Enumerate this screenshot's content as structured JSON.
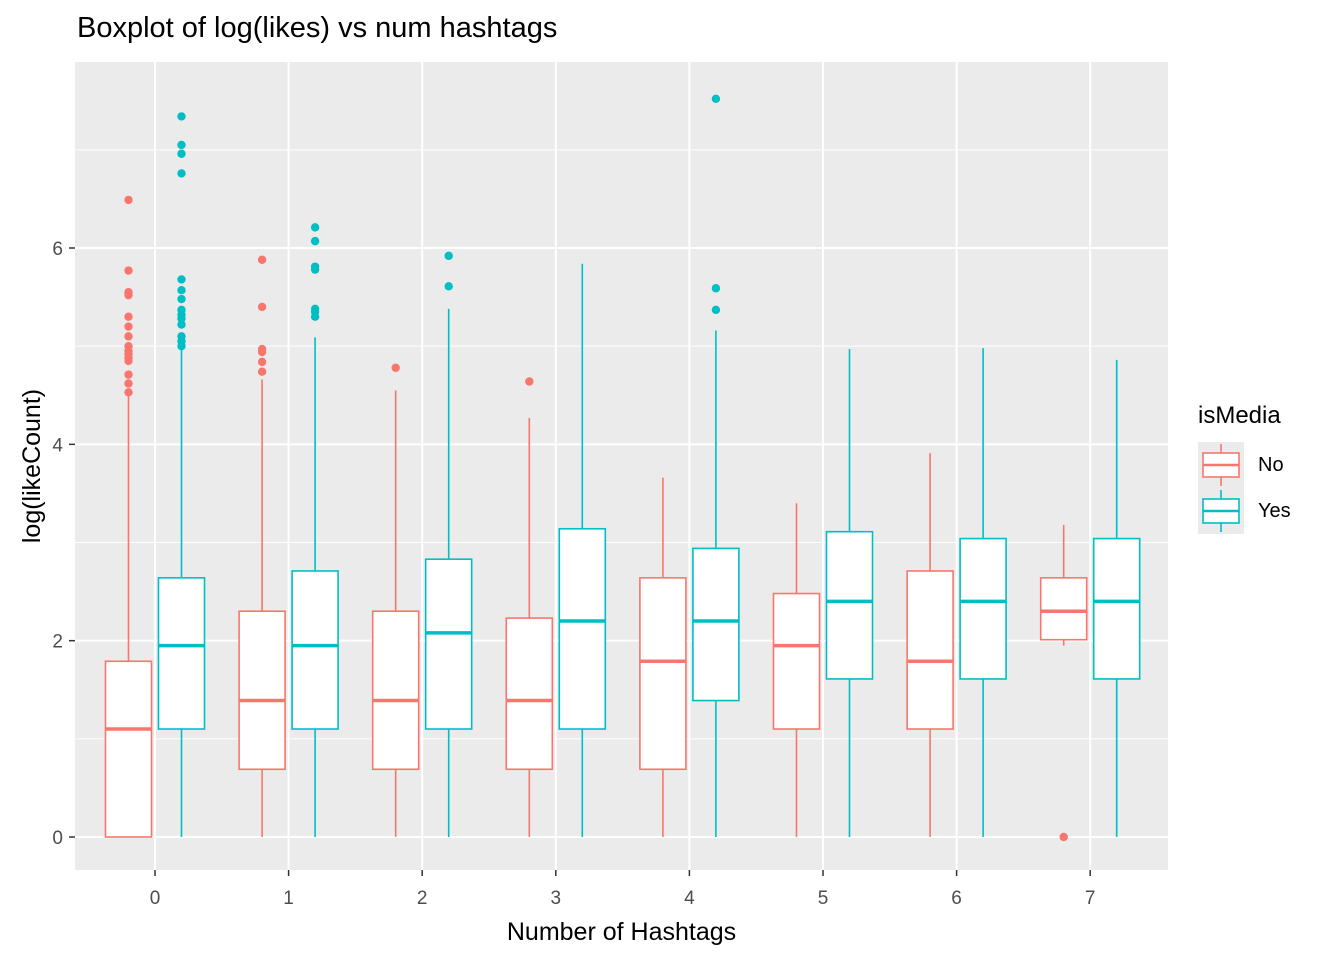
{
  "chart_data": {
    "type": "boxplot",
    "title": "Boxplot of log(likes) vs num hashtags",
    "xlabel": "Number of Hashtags",
    "ylabel": "log(likeCount)",
    "categories": [
      "0",
      "1",
      "2",
      "3",
      "4",
      "5",
      "6",
      "7"
    ],
    "y_ticks": [
      0,
      2,
      4,
      6
    ],
    "ylim": [
      -0.35,
      7.85
    ],
    "grid": true,
    "legend": {
      "title": "isMedia",
      "position": "right"
    },
    "series": [
      {
        "name": "No",
        "color": "#F8766D",
        "boxes": [
          {
            "min": 0,
            "q1": 0,
            "median": 1.1,
            "q3": 1.79,
            "max": 4.5,
            "outliers": [
              4.53,
              4.62,
              4.71,
              4.85,
              4.88,
              4.92,
              4.95,
              5.0,
              5.1,
              5.2,
              5.3,
              5.52,
              5.55,
              5.77,
              6.49
            ]
          },
          {
            "min": 0,
            "q1": 0.69,
            "median": 1.39,
            "q3": 2.3,
            "max": 4.66,
            "outliers": [
              4.74,
              4.84,
              4.94,
              4.97,
              5.4,
              5.88
            ]
          },
          {
            "min": 0,
            "q1": 0.69,
            "median": 1.39,
            "q3": 2.3,
            "max": 4.55,
            "outliers": [
              4.78
            ]
          },
          {
            "min": 0,
            "q1": 0.69,
            "median": 1.39,
            "q3": 2.23,
            "max": 4.27,
            "outliers": [
              4.64
            ]
          },
          {
            "min": 0,
            "q1": 0.69,
            "median": 1.79,
            "q3": 2.64,
            "max": 3.66,
            "outliers": []
          },
          {
            "min": 0,
            "q1": 1.1,
            "median": 1.95,
            "q3": 2.48,
            "max": 3.4,
            "outliers": []
          },
          {
            "min": 0,
            "q1": 1.1,
            "median": 1.79,
            "q3": 2.71,
            "max": 3.91,
            "outliers": []
          },
          {
            "min": 1.95,
            "q1": 2.01,
            "median": 2.3,
            "q3": 2.64,
            "max": 3.18,
            "outliers": [
              0
            ]
          }
        ]
      },
      {
        "name": "Yes",
        "color": "#00BFC4",
        "boxes": [
          {
            "min": 0,
            "q1": 1.1,
            "median": 1.95,
            "q3": 2.64,
            "max": 4.97,
            "outliers": [
              5.0,
              5.05,
              5.1,
              5.22,
              5.28,
              5.32,
              5.37,
              5.48,
              5.57,
              5.68,
              6.76,
              6.96,
              7.05,
              7.34
            ]
          },
          {
            "min": 0,
            "q1": 1.1,
            "median": 1.95,
            "q3": 2.71,
            "max": 5.09,
            "outliers": [
              5.3,
              5.35,
              5.38,
              5.78,
              5.81,
              6.07,
              6.21
            ]
          },
          {
            "min": 0,
            "q1": 1.1,
            "median": 2.08,
            "q3": 2.83,
            "max": 5.38,
            "outliers": [
              5.61,
              5.92
            ]
          },
          {
            "min": 0,
            "q1": 1.1,
            "median": 2.2,
            "q3": 3.14,
            "max": 5.84,
            "outliers": []
          },
          {
            "min": 0,
            "q1": 1.39,
            "median": 2.2,
            "q3": 2.94,
            "max": 5.16,
            "outliers": [
              5.37,
              5.59,
              7.52
            ]
          },
          {
            "min": 0,
            "q1": 1.61,
            "median": 2.4,
            "q3": 3.11,
            "max": 4.97,
            "outliers": []
          },
          {
            "min": 0,
            "q1": 1.61,
            "median": 2.4,
            "q3": 3.04,
            "max": 4.98,
            "outliers": []
          },
          {
            "min": 0,
            "q1": 1.61,
            "median": 2.4,
            "q3": 3.04,
            "max": 4.86,
            "outliers": []
          }
        ]
      }
    ]
  }
}
